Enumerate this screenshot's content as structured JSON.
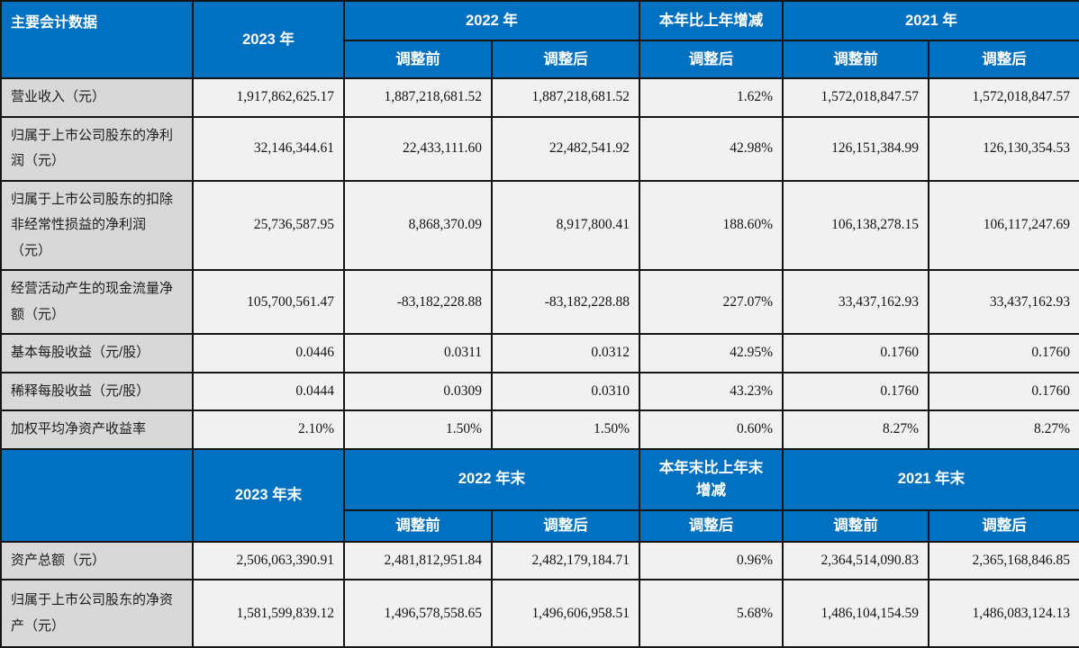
{
  "colors": {
    "header_bg": "#0070C0",
    "header_text": "#FFFFFF",
    "label_bg": "#D8D8D8",
    "cell_bg": "#F1F1F1",
    "border": "#141414"
  },
  "table": {
    "section1": {
      "header": {
        "title": "主要会计数据",
        "year_current": "2023 年",
        "year_prev": "2022 年",
        "change": "本年比上年增减",
        "year_prev2": "2021 年",
        "sub": [
          "调整前",
          "调整后",
          "调整后",
          "调整前",
          "调整后"
        ]
      },
      "rows": [
        {
          "label": "营业收入（元）",
          "values": [
            "1,917,862,625.17",
            "1,887,218,681.52",
            "1,887,218,681.52",
            "1.62%",
            "1,572,018,847.57",
            "1,572,018,847.57"
          ]
        },
        {
          "label": "归属于上市公司股东的净利润（元）",
          "values": [
            "32,146,344.61",
            "22,433,111.60",
            "22,482,541.92",
            "42.98%",
            "126,151,384.99",
            "126,130,354.53"
          ]
        },
        {
          "label": "归属于上市公司股东的扣除非经常性损益的净利润（元）",
          "values": [
            "25,736,587.95",
            "8,868,370.09",
            "8,917,800.41",
            "188.60%",
            "106,138,278.15",
            "106,117,247.69"
          ]
        },
        {
          "label": "经营活动产生的现金流量净额（元）",
          "values": [
            "105,700,561.47",
            "-83,182,228.88",
            "-83,182,228.88",
            "227.07%",
            "33,437,162.93",
            "33,437,162.93"
          ]
        },
        {
          "label": "基本每股收益（元/股）",
          "values": [
            "0.0446",
            "0.0311",
            "0.0312",
            "42.95%",
            "0.1760",
            "0.1760"
          ]
        },
        {
          "label": "稀释每股收益（元/股）",
          "values": [
            "0.0444",
            "0.0309",
            "0.0310",
            "43.23%",
            "0.1760",
            "0.1760"
          ]
        },
        {
          "label": "加权平均净资产收益率",
          "values": [
            "2.10%",
            "1.50%",
            "1.50%",
            "0.60%",
            "8.27%",
            "8.27%"
          ]
        }
      ]
    },
    "section2": {
      "header": {
        "title": "",
        "year_current": "2023 年末",
        "year_prev": "2022 年末",
        "change": "本年末比上年末增减",
        "year_prev2": "2021 年末",
        "sub": [
          "调整前",
          "调整后",
          "调整后",
          "调整前",
          "调整后"
        ]
      },
      "rows": [
        {
          "label": "资产总额（元）",
          "values": [
            "2,506,063,390.91",
            "2,481,812,951.84",
            "2,482,179,184.71",
            "0.96%",
            "2,364,514,090.83",
            "2,365,168,846.85"
          ]
        },
        {
          "label": "归属于上市公司股东的净资产（元）",
          "values": [
            "1,581,599,839.12",
            "1,496,578,558.65",
            "1,496,606,958.51",
            "5.68%",
            "1,486,104,154.59",
            "1,486,083,124.13"
          ]
        }
      ]
    }
  }
}
